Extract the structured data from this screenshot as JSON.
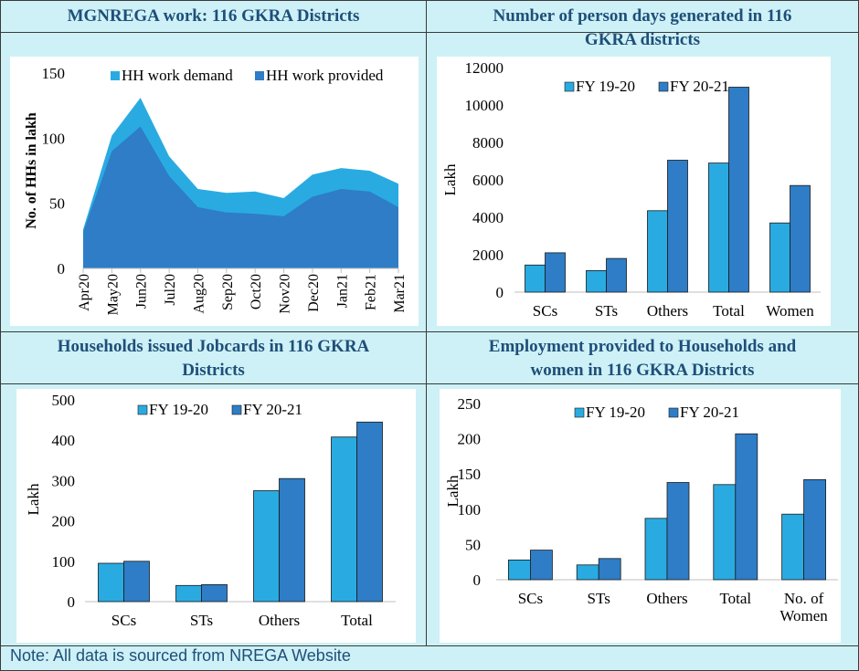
{
  "panels": [
    {
      "title_line1": "MGNREGA work: 116 GKRA Districts",
      "title_line2": ""
    },
    {
      "title_line1": "Number of person days generated in 116",
      "title_line2": "GKRA districts"
    },
    {
      "title_line1": "Households issued Jobcards in 116 GKRA",
      "title_line2": "Districts"
    },
    {
      "title_line1": "Employment provided to Households and",
      "title_line2": "women in 116 GKRA Districts"
    }
  ],
  "note": "Note: All data is sourced from NREGA Website",
  "colors": {
    "light": "#29abe2",
    "dark": "#2e7dc6",
    "title": "#1f4e79",
    "panel_bg": "#cdf1f6"
  },
  "chart_data": [
    {
      "type": "area",
      "ylabel": "No. of HHs in lakh",
      "ylim": [
        0,
        150
      ],
      "yticks": [
        0,
        50,
        100,
        150
      ],
      "legend_position": "top",
      "categories": [
        "Apr20",
        "May20",
        "Jun20",
        "Jul20",
        "Aug20",
        "Sep20",
        "Oct20",
        "Nov20",
        "Dec20",
        "Jan21",
        "Feb21",
        "Mar21"
      ],
      "series": [
        {
          "name": "HH work demand",
          "values": [
            30,
            102,
            131,
            86,
            61,
            58,
            59,
            54,
            72,
            77,
            75,
            65
          ]
        },
        {
          "name": "HH work provided",
          "values": [
            28,
            90,
            109,
            71,
            47,
            43,
            42,
            40,
            55,
            61,
            59,
            47
          ]
        }
      ]
    },
    {
      "type": "bar",
      "ylabel": "Lakh",
      "ylim": [
        0,
        12000
      ],
      "yticks": [
        0,
        2000,
        4000,
        6000,
        8000,
        10000,
        12000
      ],
      "legend_position": "top",
      "categories": [
        "SCs",
        "STs",
        "Others",
        "Total",
        "Women"
      ],
      "series": [
        {
          "name": "FY 19-20",
          "values": [
            1450,
            1150,
            4350,
            6900,
            3700
          ]
        },
        {
          "name": "FY 20-21",
          "values": [
            2100,
            1800,
            7050,
            10950,
            5700
          ]
        }
      ]
    },
    {
      "type": "bar",
      "ylabel": "Lakh",
      "ylim": [
        0,
        500
      ],
      "yticks": [
        0,
        100,
        200,
        300,
        400,
        500
      ],
      "legend_position": "top",
      "categories": [
        "SCs",
        "STs",
        "Others",
        "Total"
      ],
      "series": [
        {
          "name": "FY 19-20",
          "values": [
            95,
            40,
            275,
            408
          ]
        },
        {
          "name": "FY 20-21",
          "values": [
            100,
            42,
            305,
            445
          ]
        }
      ]
    },
    {
      "type": "bar",
      "ylabel": "Lakh",
      "ylim": [
        0,
        250
      ],
      "yticks": [
        0,
        50,
        100,
        150,
        200,
        250
      ],
      "legend_position": "top",
      "categories": [
        "SCs",
        "STs",
        "Others",
        "Total",
        [
          "No. of",
          "Women"
        ]
      ],
      "series": [
        {
          "name": "FY 19-20",
          "values": [
            28,
            21,
            87,
            135,
            93
          ]
        },
        {
          "name": "FY 20-21",
          "values": [
            42,
            30,
            138,
            207,
            142
          ]
        }
      ]
    }
  ]
}
